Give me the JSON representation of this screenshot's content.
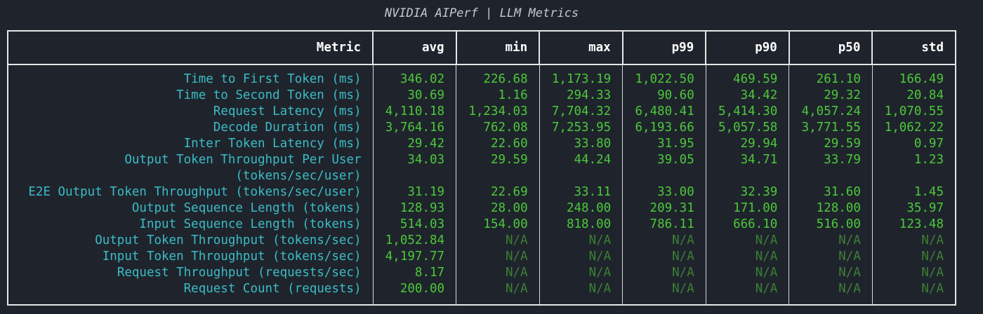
{
  "title": "NVIDIA AIPerf | LLM Metrics",
  "table": {
    "header": [
      "Metric",
      "avg",
      "min",
      "max",
      "p99",
      "p90",
      "p50",
      "std"
    ],
    "rows": [
      [
        "Time to First Token (ms)",
        "346.02",
        "226.68",
        "1,173.19",
        "1,022.50",
        "469.59",
        "261.10",
        "166.49"
      ],
      [
        "Time to Second Token (ms)",
        "30.69",
        "1.16",
        "294.33",
        "90.60",
        "34.42",
        "29.32",
        "20.84"
      ],
      [
        "Request Latency (ms)",
        "4,110.18",
        "1,234.03",
        "7,704.32",
        "6,480.41",
        "5,414.30",
        "4,057.24",
        "1,070.55"
      ],
      [
        "Decode Duration (ms)",
        "3,764.16",
        "762.08",
        "7,253.95",
        "6,193.66",
        "5,057.58",
        "3,771.55",
        "1,062.22"
      ],
      [
        "Inter Token Latency (ms)",
        "29.42",
        "22.60",
        "33.80",
        "31.95",
        "29.94",
        "29.59",
        "0.97"
      ],
      [
        "Output Token Throughput Per User\n(tokens/sec/user)",
        "34.03",
        "29.59",
        "44.24",
        "39.05",
        "34.71",
        "33.79",
        "1.23"
      ],
      [
        "E2E Output Token Throughput (tokens/sec/user)",
        "31.19",
        "22.69",
        "33.11",
        "33.00",
        "32.39",
        "31.60",
        "1.45"
      ],
      [
        "Output Sequence Length (tokens)",
        "128.93",
        "28.00",
        "248.00",
        "209.31",
        "171.00",
        "128.00",
        "35.97"
      ],
      [
        "Input Sequence Length (tokens)",
        "514.03",
        "154.00",
        "818.00",
        "786.11",
        "666.10",
        "516.00",
        "123.48"
      ],
      [
        "Output Token Throughput (tokens/sec)",
        "1,052.84",
        "N/A",
        "N/A",
        "N/A",
        "N/A",
        "N/A",
        "N/A"
      ],
      [
        "Input Token Throughput (tokens/sec)",
        "4,197.77",
        "N/A",
        "N/A",
        "N/A",
        "N/A",
        "N/A",
        "N/A"
      ],
      [
        "Request Throughput (requests/sec)",
        "8.17",
        "N/A",
        "N/A",
        "N/A",
        "N/A",
        "N/A",
        "N/A"
      ],
      [
        "Request Count (requests)",
        "200.00",
        "N/A",
        "N/A",
        "N/A",
        "N/A",
        "N/A",
        "N/A"
      ]
    ]
  }
}
